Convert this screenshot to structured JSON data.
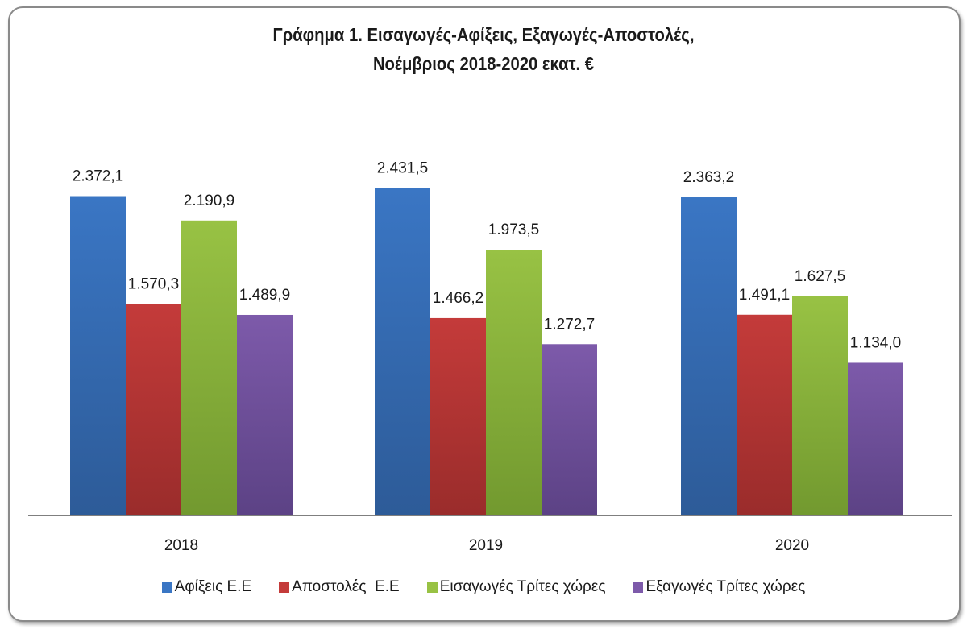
{
  "chart_data": {
    "type": "bar",
    "title_line1": "Γράφημα 1. Εισαγωγές-Αφίξεις, Εξαγωγές-Αποστολές,",
    "title_line2": "Νοέμβριος 2018-2020 εκατ. €",
    "categories": [
      "2018",
      "2019",
      "2020"
    ],
    "series": [
      {
        "name": "Αφίξεις Ε.Ε",
        "values": [
          2372.1,
          2431.5,
          2363.2
        ],
        "labels": [
          "2.372,1",
          "2.431,5",
          "2.363,2"
        ],
        "color": "#3a76c4",
        "color_dark": "#2d5b98"
      },
      {
        "name": "Αποστολές  Ε.Ε",
        "values": [
          1570.3,
          1466.2,
          1491.1
        ],
        "labels": [
          "1.570,3",
          "1.466,2",
          "1.491,1"
        ],
        "color": "#c43b3a",
        "color_dark": "#9a2c2b"
      },
      {
        "name": "Εισαγωγές Τρίτες χώρες",
        "values": [
          2190.9,
          1973.5,
          1627.5
        ],
        "labels": [
          "2.190,9",
          "1.973,5",
          "1.627,5"
        ],
        "color": "#98c244",
        "color_dark": "#72992f"
      },
      {
        "name": "Εξαγωγές Τρίτες χώρες",
        "values": [
          1489.9,
          1272.7,
          1134.0
        ],
        "labels": [
          "1.489,9",
          "1.272,7",
          "1.134,0"
        ],
        "color": "#7d5aaa",
        "color_dark": "#5c4285"
      }
    ],
    "ylim": [
      0,
      2800
    ],
    "grid": false,
    "legend": "bottom"
  }
}
